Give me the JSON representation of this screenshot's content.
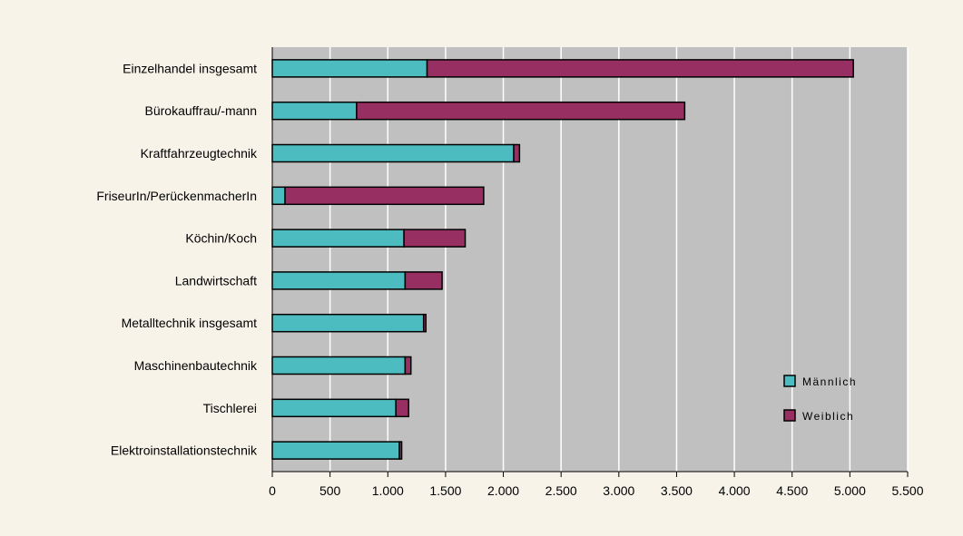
{
  "chart_data": {
    "type": "bar",
    "orientation": "horizontal",
    "stacked": true,
    "categories": [
      "Einzelhandel insgesamt",
      "Bürokauffrau/-mann",
      "Kraftfahrzeugtechnik",
      "FriseurIn/PerückenmacherIn",
      "Köchin/Koch",
      "Landwirtschaft",
      "Metalltechnik insgesamt",
      "Maschinenbautechnik",
      "Tischlerei",
      "Elektroinstallationstechnik"
    ],
    "series": [
      {
        "name": "Männlich",
        "color": "#4cbcc0",
        "values": [
          1340,
          730,
          2090,
          110,
          1140,
          1150,
          1310,
          1150,
          1070,
          1100
        ]
      },
      {
        "name": "Weiblich",
        "color": "#982f62",
        "values": [
          3690,
          2840,
          50,
          1720,
          530,
          320,
          20,
          50,
          110,
          20
        ]
      }
    ],
    "x_ticks": [
      "0",
      "500",
      "1.000",
      "1.500",
      "2.000",
      "2.500",
      "3.000",
      "3.500",
      "4.000",
      "4.500",
      "5.000",
      "5.500"
    ],
    "xlim": [
      0,
      5500
    ],
    "grid": true,
    "legend_position": "bottom-right",
    "plot_background": "#c0c0c0",
    "page_background": "#f7f3e9"
  }
}
